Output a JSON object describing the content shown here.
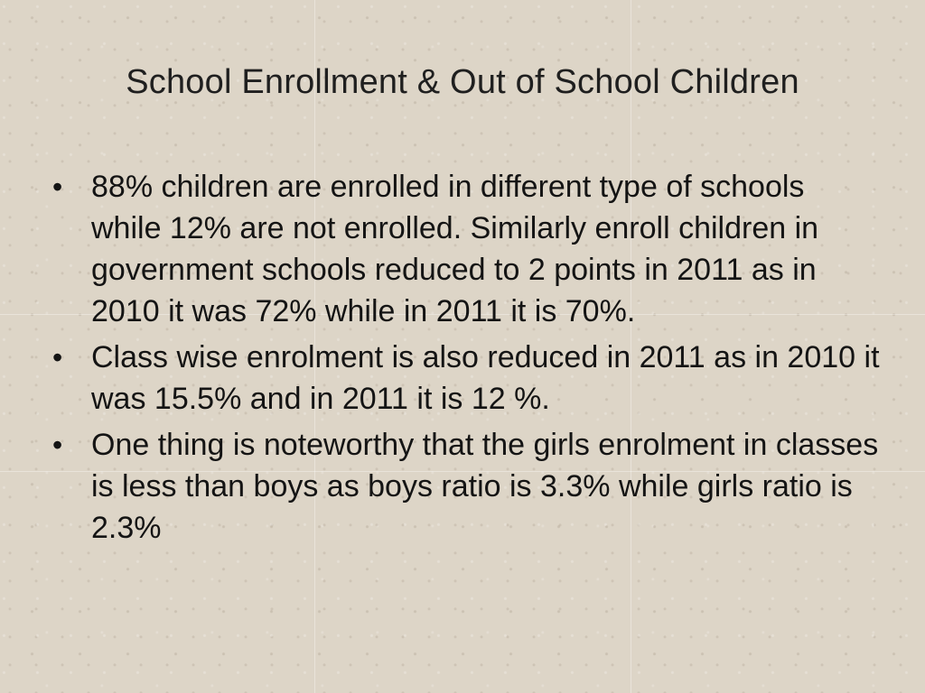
{
  "slide": {
    "title": "School Enrollment & Out of School Children",
    "bullets": [
      {
        "text": "88% children are enrolled in different type of schools while  12% are not enrolled. Similarly enroll children in government schools reduced to 2 points in 2011 as in 2010 it was 72% while in 2011 it is 70%."
      },
      {
        "text": "Class wise enrolment is also reduced in 2011 as in 2010 it was 15.5% and in 2011 it is 12 %."
      },
      {
        "text": "One thing is noteworthy that the girls enrolment in classes is less than boys as boys ratio is 3.3% while girls ratio is 2.3%"
      }
    ],
    "bullet_glyph": "•",
    "colors": {
      "background": "#ddd5c7",
      "text": "#141414"
    }
  }
}
